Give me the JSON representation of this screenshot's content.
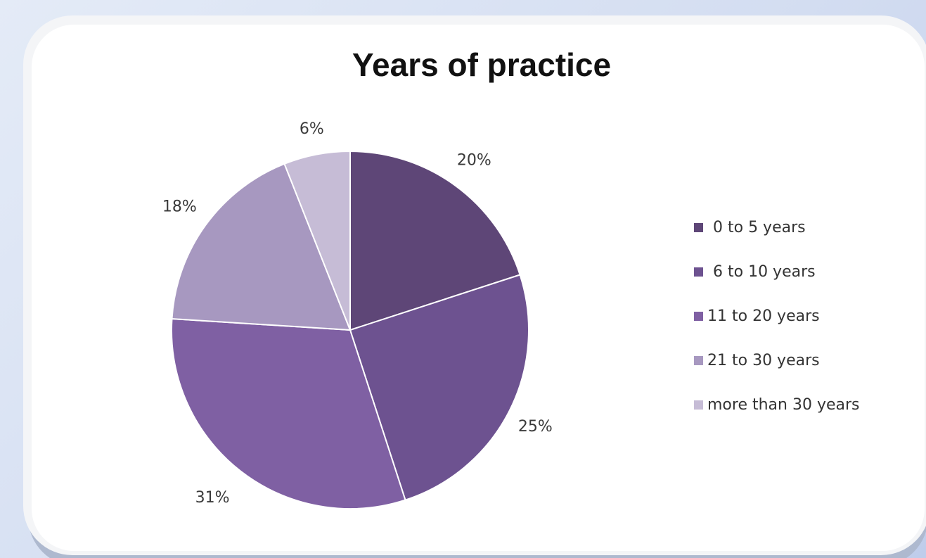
{
  "chart_data": {
    "type": "pie",
    "title": "Years of practice",
    "categories": [
      "0 to  5 years",
      "6 to 10 years",
      "11 to 20 years",
      "21 to 30 years",
      "more than 30 years"
    ],
    "values": [
      20,
      25,
      31,
      18,
      6
    ],
    "labels": [
      "20%",
      "25%",
      "31%",
      "18%",
      "6%"
    ],
    "colors": [
      "#5e4677",
      "#6d5290",
      "#7f60a3",
      "#a798c0",
      "#c6bcd6"
    ],
    "legend_position": "right",
    "start_angle": "top",
    "direction": "clockwise"
  }
}
